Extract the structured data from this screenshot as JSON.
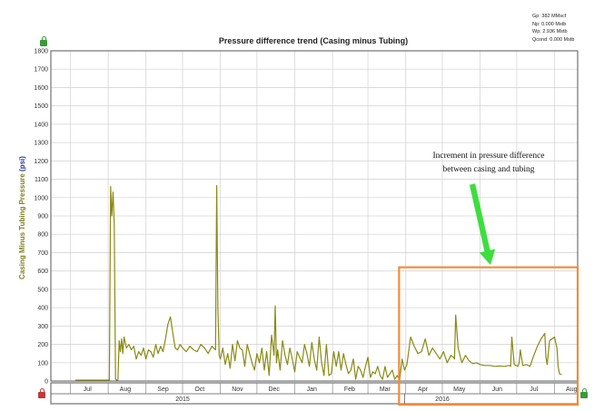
{
  "stats": {
    "gp": "Gp: 382 MMscf",
    "np": "Np: 0.000 Mstb",
    "wp": "Wp: 2.936 Mstb",
    "qcond": "Qcond: 0.000 Mstb"
  },
  "icons": {
    "top_left": "green-lock-icon",
    "bottom_left": "red-lock-icon",
    "bottom_right": "green-lock-icon"
  },
  "colors": {
    "series": "#8a8a14",
    "highlight_box": "#ef8c3c",
    "arrow": "#3dde3d",
    "grid": "#d6d6d6"
  },
  "chart_data": {
    "type": "line",
    "title": "Pressure difference trend (Casing minus Tubing)",
    "ylabel": "Casing Minus Tubing Pressure",
    "ylabel_unit": "(psi)",
    "xlabel": "",
    "ylim": [
      0,
      1800
    ],
    "yticks": [
      0,
      100,
      200,
      300,
      400,
      500,
      600,
      700,
      800,
      900,
      1000,
      1100,
      1200,
      1300,
      1400,
      1500,
      1600,
      1700,
      1800
    ],
    "xlim": [
      "2015-06-15",
      "2016-08-20"
    ],
    "months": [
      {
        "label": "Jul",
        "date": "2015-07-15"
      },
      {
        "label": "Aug",
        "date": "2015-08-15"
      },
      {
        "label": "Sep",
        "date": "2015-09-15"
      },
      {
        "label": "Oct",
        "date": "2015-10-15"
      },
      {
        "label": "Nov",
        "date": "2015-11-15"
      },
      {
        "label": "Dec",
        "date": "2015-12-15"
      },
      {
        "label": "Jan",
        "date": "2016-01-15"
      },
      {
        "label": "Feb",
        "date": "2016-02-15"
      },
      {
        "label": "Mar",
        "date": "2016-03-15"
      },
      {
        "label": "Apr",
        "date": "2016-04-15"
      },
      {
        "label": "May",
        "date": "2016-05-15"
      },
      {
        "label": "Jun",
        "date": "2016-06-15"
      },
      {
        "label": "Jul",
        "date": "2016-07-15"
      },
      {
        "label": "Aug",
        "date": "2016-08-15"
      }
    ],
    "month_gridlines": [
      "2015-07-01",
      "2015-08-01",
      "2015-09-01",
      "2015-10-01",
      "2015-11-01",
      "2015-12-01",
      "2016-01-01",
      "2016-02-01",
      "2016-03-01",
      "2016-04-01",
      "2016-05-01",
      "2016-06-01",
      "2016-07-01",
      "2016-08-01"
    ],
    "years": [
      {
        "label": "2015",
        "date": "2015-10-01"
      },
      {
        "label": "2016",
        "date": "2016-05-01"
      }
    ],
    "year_divider": "2016-03-31",
    "grid": true,
    "series": [
      {
        "x": [
          "2015-07-05",
          "2015-08-02",
          "2015-08-03",
          "2015-08-04",
          "2015-08-05",
          "2015-08-06",
          "2015-08-07",
          "2015-08-08",
          "2015-08-09",
          "2015-08-10",
          "2015-08-11",
          "2015-08-12",
          "2015-08-13",
          "2015-08-14",
          "2015-08-16",
          "2015-08-18",
          "2015-08-20",
          "2015-08-22",
          "2015-08-24",
          "2015-08-26",
          "2015-08-28",
          "2015-08-30",
          "2015-09-01",
          "2015-09-03",
          "2015-09-05",
          "2015-09-07",
          "2015-09-09",
          "2015-09-11",
          "2015-09-13",
          "2015-09-15",
          "2015-09-17",
          "2015-09-19",
          "2015-09-21",
          "2015-09-23",
          "2015-09-25",
          "2015-09-27",
          "2015-09-29",
          "2015-10-01",
          "2015-10-04",
          "2015-10-07",
          "2015-10-10",
          "2015-10-13",
          "2015-10-16",
          "2015-10-19",
          "2015-10-22",
          "2015-10-25",
          "2015-10-28",
          "2015-10-29",
          "2015-10-30",
          "2015-10-31",
          "2015-11-01",
          "2015-11-03",
          "2015-11-05",
          "2015-11-07",
          "2015-11-09",
          "2015-11-11",
          "2015-11-13",
          "2015-11-15",
          "2015-11-17",
          "2015-11-19",
          "2015-11-21",
          "2015-11-23",
          "2015-11-25",
          "2015-11-27",
          "2015-11-29",
          "2015-12-01",
          "2015-12-03",
          "2015-12-05",
          "2015-12-07",
          "2015-12-09",
          "2015-12-11",
          "2015-12-13",
          "2015-12-15",
          "2015-12-16",
          "2015-12-17",
          "2015-12-18",
          "2015-12-20",
          "2015-12-22",
          "2015-12-24",
          "2015-12-26",
          "2015-12-28",
          "2015-12-30",
          "2016-01-01",
          "2016-01-03",
          "2016-01-05",
          "2016-01-07",
          "2016-01-09",
          "2016-01-11",
          "2016-01-13",
          "2016-01-15",
          "2016-01-17",
          "2016-01-19",
          "2016-01-21",
          "2016-01-23",
          "2016-01-25",
          "2016-01-27",
          "2016-01-29",
          "2016-01-31",
          "2016-02-02",
          "2016-02-04",
          "2016-02-06",
          "2016-02-08",
          "2016-02-10",
          "2016-02-12",
          "2016-02-14",
          "2016-02-16",
          "2016-02-18",
          "2016-02-20",
          "2016-02-22",
          "2016-02-24",
          "2016-02-26",
          "2016-02-28",
          "2016-03-01",
          "2016-03-03",
          "2016-03-05",
          "2016-03-07",
          "2016-03-09",
          "2016-03-11",
          "2016-03-13",
          "2016-03-15",
          "2016-03-17",
          "2016-03-19",
          "2016-03-21",
          "2016-03-23",
          "2016-03-25",
          "2016-03-27",
          "2016-03-29",
          "2016-03-31",
          "2016-04-02",
          "2016-04-05",
          "2016-04-08",
          "2016-04-11",
          "2016-04-14",
          "2016-04-17",
          "2016-04-20",
          "2016-04-23",
          "2016-04-26",
          "2016-04-29",
          "2016-05-02",
          "2016-05-05",
          "2016-05-08",
          "2016-05-10",
          "2016-05-11",
          "2016-05-12",
          "2016-05-14",
          "2016-05-17",
          "2016-05-20",
          "2016-05-23",
          "2016-05-26",
          "2016-05-29",
          "2016-06-01",
          "2016-06-05",
          "2016-06-09",
          "2016-06-13",
          "2016-06-17",
          "2016-06-21",
          "2016-06-25",
          "2016-06-26",
          "2016-06-27",
          "2016-06-29",
          "2016-07-02",
          "2016-07-03",
          "2016-07-04",
          "2016-07-06",
          "2016-07-09",
          "2016-07-12",
          "2016-07-15",
          "2016-07-18",
          "2016-07-21",
          "2016-07-24",
          "2016-07-25",
          "2016-07-26",
          "2016-07-28",
          "2016-08-01",
          "2016-08-03",
          "2016-08-04",
          "2016-08-05",
          "2016-08-07"
        ],
        "y": [
          5,
          5,
          1060,
          900,
          1030,
          850,
          10,
          5,
          5,
          220,
          160,
          230,
          150,
          240,
          180,
          200,
          170,
          190,
          120,
          160,
          140,
          180,
          120,
          170,
          160,
          130,
          200,
          150,
          190,
          160,
          230,
          310,
          350,
          260,
          180,
          170,
          200,
          180,
          160,
          190,
          170,
          160,
          200,
          180,
          150,
          190,
          170,
          1065,
          400,
          140,
          120,
          180,
          90,
          150,
          70,
          200,
          110,
          220,
          180,
          170,
          80,
          200,
          150,
          100,
          60,
          150,
          100,
          180,
          60,
          160,
          30,
          250,
          140,
          410,
          100,
          170,
          60,
          220,
          140,
          90,
          180,
          120,
          50,
          160,
          130,
          100,
          200,
          150,
          80,
          210,
          120,
          60,
          240,
          100,
          30,
          200,
          30,
          40,
          160,
          80,
          160,
          60,
          150,
          90,
          40,
          60,
          120,
          10,
          80,
          60,
          20,
          80,
          130,
          20,
          50,
          40,
          80,
          30,
          10,
          80,
          20,
          40,
          60,
          10,
          30,
          5,
          120,
          60,
          90,
          240,
          190,
          150,
          160,
          230,
          140,
          180,
          150,
          120,
          160,
          100,
          140,
          130,
          120,
          360,
          180,
          100,
          140,
          110,
          95,
          100,
          90,
          85,
          85,
          80,
          82,
          80,
          85,
          80,
          240,
          90,
          80,
          100,
          170,
          85,
          90,
          80,
          140,
          190,
          230,
          260,
          130,
          90,
          220,
          240,
          180,
          80,
          40,
          35
        ]
      }
    ],
    "annotations": [
      {
        "text_line_1": "Increment in pressure difference",
        "text_line_2": "between casing and tubing"
      }
    ],
    "highlight_range": {
      "x_start": "2016-03-31",
      "x_end": "2016-08-20",
      "y_start": 0,
      "y_end": 620
    }
  }
}
